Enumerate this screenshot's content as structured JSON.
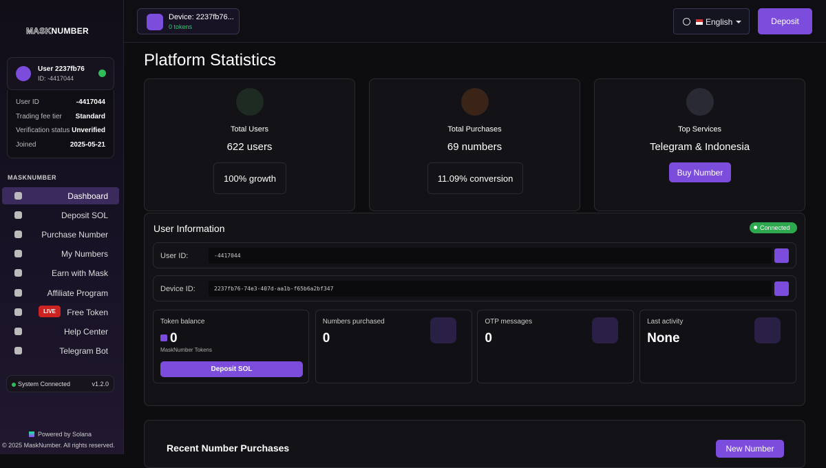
{
  "sidebar": {
    "logo": {
      "left": "MASK",
      "right": "NUMBER"
    },
    "user_card": {
      "name": "User 2237fb76",
      "id": "ID: -4417044",
      "fields": [
        {
          "label": "User ID",
          "value": "-4417044"
        },
        {
          "label": "Trading fee tier",
          "value": "Standard"
        },
        {
          "label": "Verification status",
          "value": "Unverified"
        },
        {
          "label": "Joined",
          "value": "2025-05-21"
        }
      ]
    },
    "section": "MASKNUMBER",
    "nav": [
      {
        "label": "Dashboard"
      },
      {
        "label": "Deposit SOL"
      },
      {
        "label": "Purchase Number"
      },
      {
        "label": "My Numbers"
      },
      {
        "label": "Earn with Mask"
      },
      {
        "label": "Affiliate Program"
      },
      {
        "label": "Free Token",
        "badge": "LIVE"
      },
      {
        "label": "Help Center"
      },
      {
        "label": "Telegram Bot"
      }
    ],
    "status": {
      "text": "System Connected",
      "version": "v1.2.0"
    },
    "footer": {
      "powered": "Powered by Solana",
      "copyright": "© 2025 MaskNumber. All rights reserved."
    }
  },
  "topbar": {
    "device": "Device: 2237fb76...",
    "tokens": "0 tokens",
    "language": "English",
    "deposit": "Deposit"
  },
  "page_title": "Platform Statistics",
  "stats": [
    {
      "title": "Total Users",
      "value": "622 users",
      "note": "100% growth"
    },
    {
      "title": "Total Purchases",
      "value": "69 numbers",
      "note": "11.09% conversion"
    },
    {
      "title": "Top Services",
      "value": "Telegram & Indonesia",
      "button": "Buy Number"
    }
  ],
  "user_info": {
    "title": "User Information",
    "status": "Connected",
    "rows": [
      {
        "label": "User ID:",
        "value": "-4417044"
      },
      {
        "label": "Device ID:",
        "value": "2237fb76-74e3-407d-aa1b-f65b6a2bf347"
      }
    ],
    "cards": [
      {
        "label": "Token balance",
        "value": "0",
        "sub": "MaskNumber Tokens",
        "button": "Deposit SOL"
      },
      {
        "label": "Numbers purchased",
        "value": "0"
      },
      {
        "label": "OTP messages",
        "value": "0"
      },
      {
        "label": "Last activity",
        "value": "None"
      }
    ]
  },
  "recent": {
    "title": "Recent Number Purchases",
    "button": "New Number"
  }
}
